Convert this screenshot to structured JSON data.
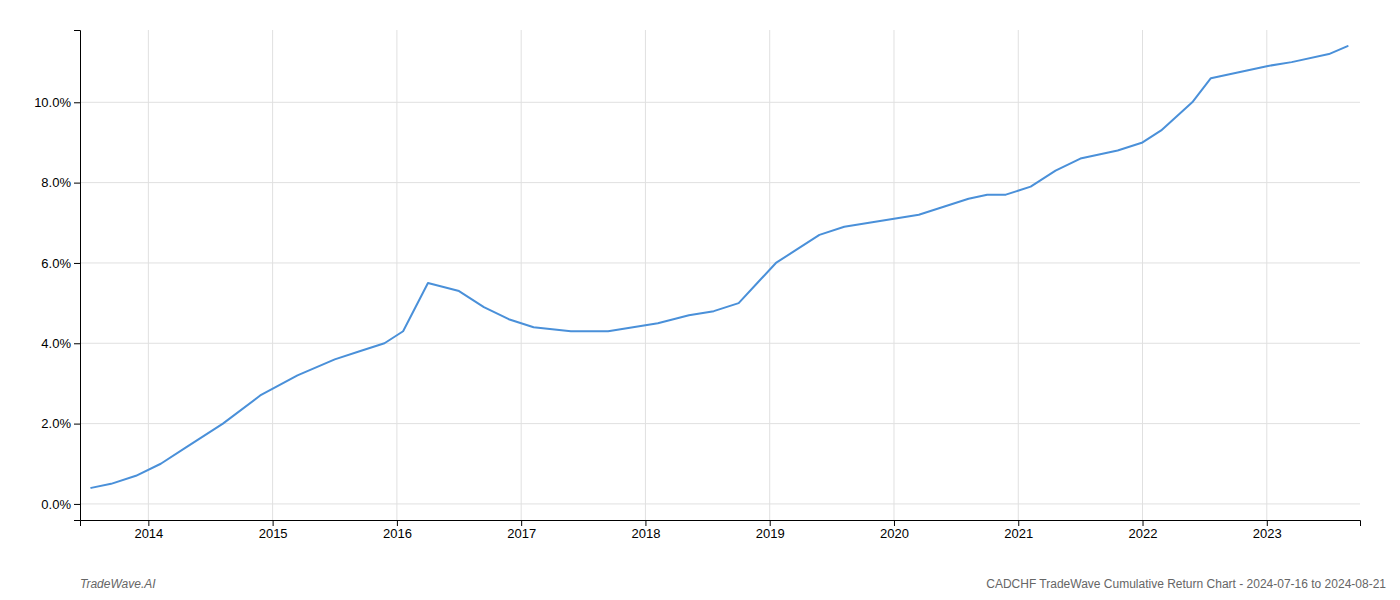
{
  "chart_data": {
    "type": "line",
    "x": [
      2013.54,
      2013.7,
      2013.9,
      2014.1,
      2014.3,
      2014.6,
      2014.9,
      2015.2,
      2015.5,
      2015.7,
      2015.9,
      2016.05,
      2016.25,
      2016.5,
      2016.7,
      2016.9,
      2017.1,
      2017.4,
      2017.7,
      2017.9,
      2018.1,
      2018.35,
      2018.55,
      2018.75,
      2018.9,
      2019.05,
      2019.2,
      2019.4,
      2019.6,
      2019.8,
      2020.0,
      2020.2,
      2020.4,
      2020.6,
      2020.75,
      2020.9,
      2021.1,
      2021.3,
      2021.5,
      2021.65,
      2021.8,
      2022.0,
      2022.15,
      2022.4,
      2022.55,
      2022.7,
      2022.85,
      2023.0,
      2023.2,
      2023.5,
      2023.65
    ],
    "values": [
      0.004,
      0.005,
      0.007,
      0.01,
      0.014,
      0.02,
      0.027,
      0.032,
      0.036,
      0.038,
      0.04,
      0.043,
      0.055,
      0.053,
      0.049,
      0.046,
      0.044,
      0.043,
      0.043,
      0.044,
      0.045,
      0.047,
      0.048,
      0.05,
      0.055,
      0.06,
      0.063,
      0.067,
      0.069,
      0.07,
      0.071,
      0.072,
      0.074,
      0.076,
      0.077,
      0.077,
      0.079,
      0.083,
      0.086,
      0.087,
      0.088,
      0.09,
      0.093,
      0.1,
      0.106,
      0.107,
      0.108,
      0.109,
      0.11,
      0.112,
      0.114
    ],
    "color": "#4a90d9",
    "xlim": [
      2013.45,
      2023.75
    ],
    "ylim": [
      -0.004,
      0.118
    ],
    "xticks": [
      2014,
      2015,
      2016,
      2017,
      2018,
      2019,
      2020,
      2021,
      2022,
      2023
    ],
    "yticks": [
      {
        "value": 0.0,
        "label": "0.0%"
      },
      {
        "value": 0.02,
        "label": "2.0%"
      },
      {
        "value": 0.04,
        "label": "4.0%"
      },
      {
        "value": 0.06,
        "label": "6.0%"
      },
      {
        "value": 0.08,
        "label": "8.0%"
      },
      {
        "value": 0.1,
        "label": "10.0%"
      }
    ],
    "grid": true,
    "annotations": [
      "TradeWave.AI",
      "CADCHF TradeWave Cumulative Return Chart - 2024-07-16 to 2024-08-21"
    ]
  }
}
